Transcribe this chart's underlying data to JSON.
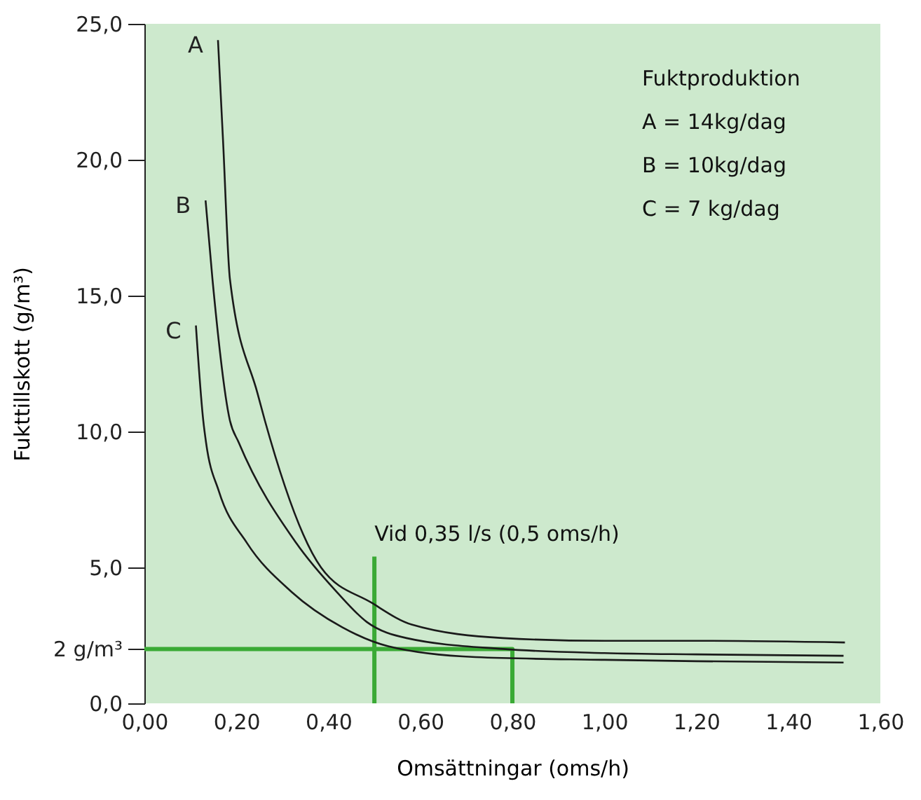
{
  "chart_data": {
    "type": "line",
    "xlabel": "Omsättningar (oms/h)",
    "ylabel": "Fukttillskott (g/m³)",
    "xlim": [
      0,
      1.6
    ],
    "ylim": [
      0,
      25
    ],
    "xticks": [
      {
        "value": 0,
        "label": "0,00"
      },
      {
        "value": 0.2,
        "label": "0,20"
      },
      {
        "value": 0.4,
        "label": "0,40"
      },
      {
        "value": 0.6,
        "label": "0,60"
      },
      {
        "value": 0.8,
        "label": "0,80"
      },
      {
        "value": 1.0,
        "label": "1,00"
      },
      {
        "value": 1.2,
        "label": "1,20"
      },
      {
        "value": 1.4,
        "label": "1,40"
      },
      {
        "value": 1.6,
        "label": "1,60"
      }
    ],
    "yticks": [
      {
        "value": 0,
        "label": "0,0"
      },
      {
        "value": 2,
        "label": "2 g/m³"
      },
      {
        "value": 5,
        "label": "5,0"
      },
      {
        "value": 10,
        "label": "10,0"
      },
      {
        "value": 15,
        "label": "15,0"
      },
      {
        "value": 20,
        "label": "20,0"
      },
      {
        "value": 25,
        "label": "25,0"
      }
    ],
    "grid": false,
    "marker": "none",
    "series": [
      {
        "color": "#3aaa35",
        "x": [
          0,
          0.8,
          0.8
        ],
        "values": [
          2,
          2,
          0
        ]
      },
      {
        "color": "#3aaa35",
        "x": [
          0.5,
          0.5
        ],
        "values": [
          0,
          5.4
        ]
      },
      {
        "name": "A",
        "color": "#1a1a1a",
        "x": [
          0.16,
          0.171,
          0.186,
          0.246,
          0.262,
          0.384,
          0.494,
          0.581,
          0.78,
          1.0,
          1.2,
          1.523
        ],
        "values": [
          24.4,
          20.7,
          15.6,
          11.4,
          10.4,
          5.0,
          3.7,
          2.9,
          2.4,
          2.3,
          2.3,
          2.24
        ]
      },
      {
        "name": "B",
        "color": "#1a1a1a",
        "x": [
          0.133,
          0.148,
          0.186,
          0.205,
          0.33,
          0.418,
          0.483,
          0.57,
          0.78,
          1.0,
          1.2,
          1.52
        ],
        "values": [
          18.5,
          15.6,
          10.4,
          9.6,
          5.9,
          4.1,
          3.0,
          2.4,
          2.0,
          1.85,
          1.8,
          1.75
        ]
      },
      {
        "name": "C",
        "color": "#1a1a1a",
        "x": [
          0.112,
          0.128,
          0.134,
          0.162,
          0.223,
          0.32,
          0.43,
          0.53,
          0.72,
          1.0,
          1.2,
          1.52
        ],
        "values": [
          13.9,
          10.4,
          9.6,
          7.8,
          5.9,
          4.1,
          2.8,
          2.1,
          1.7,
          1.6,
          1.55,
          1.5
        ]
      }
    ],
    "annotations": [
      {
        "text": "Vid 0,35 l/s (0,5 oms/h)",
        "x": 0.5,
        "y": 5.4
      },
      "Fuktproduktion",
      "A = 14kg/dag",
      "B = 10kg/dag",
      "C = 7 kg/dag"
    ]
  }
}
